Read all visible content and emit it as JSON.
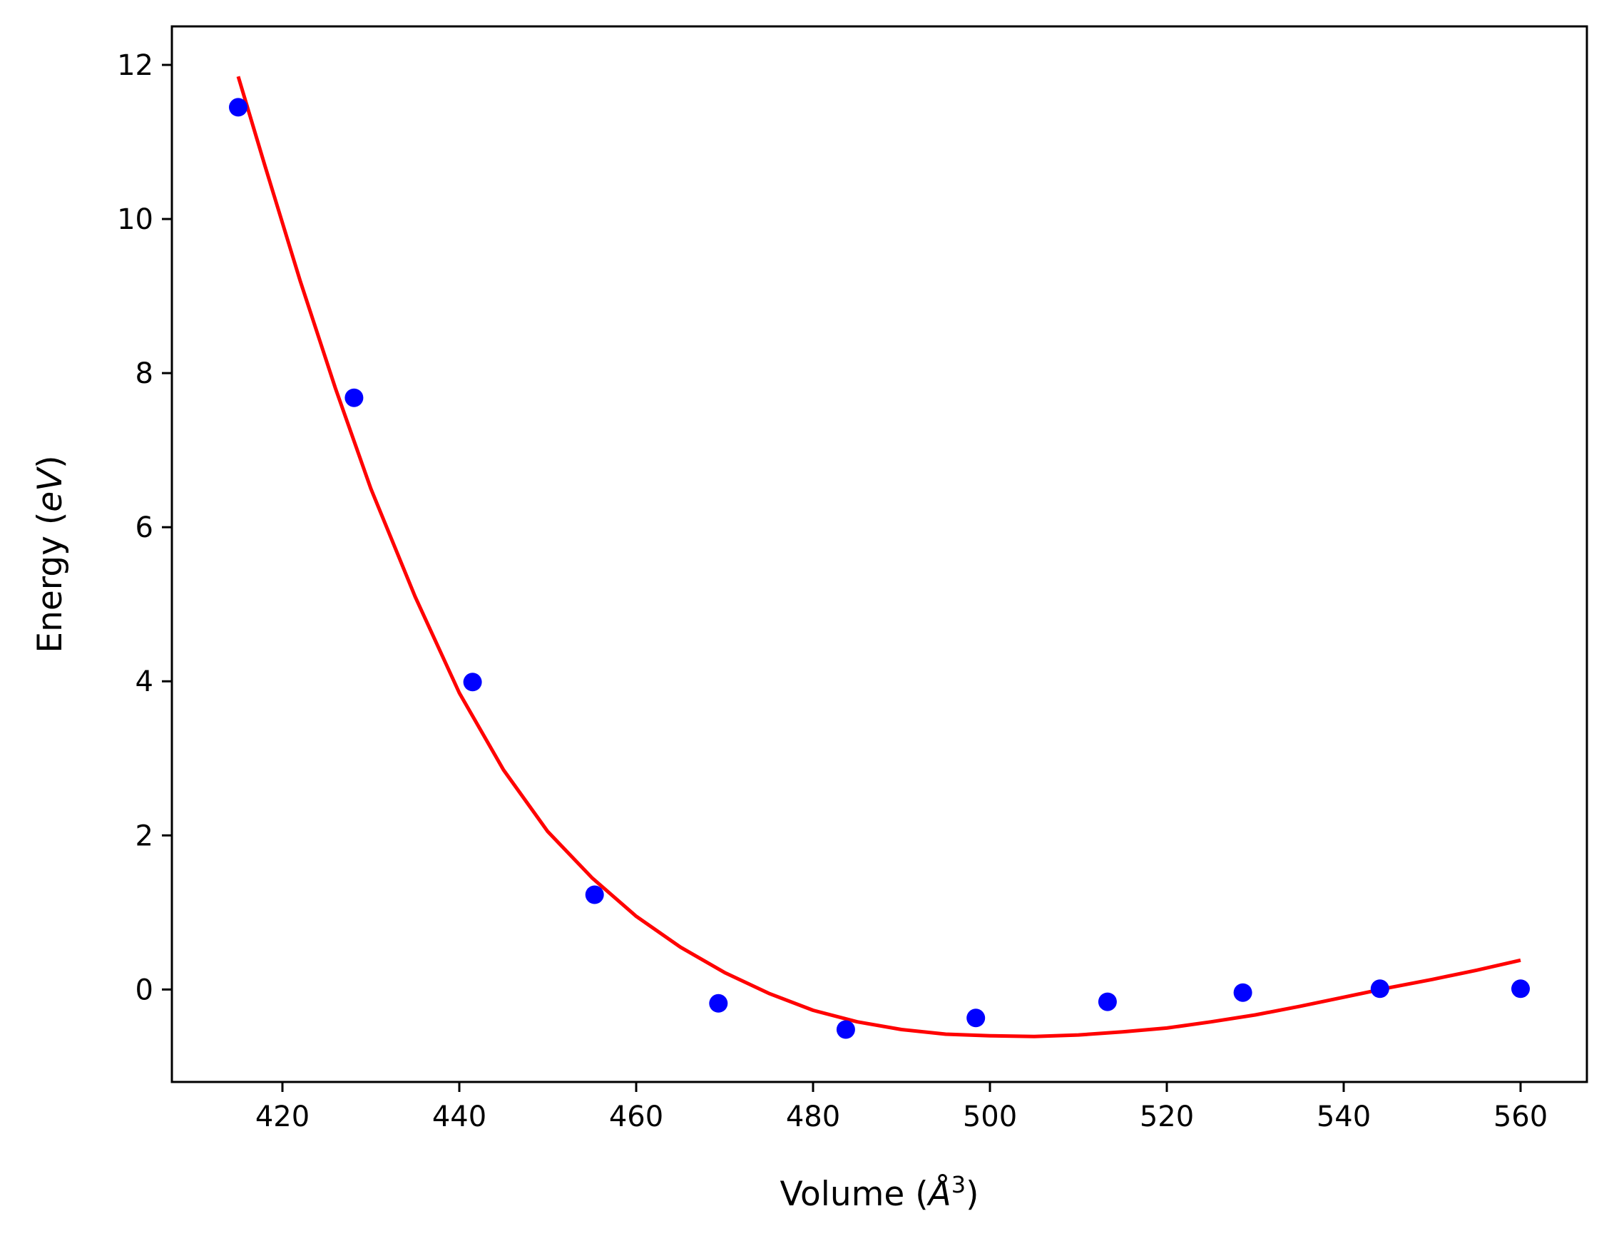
{
  "chart_data": {
    "type": "scatter",
    "xlabel_parts": {
      "prefix": "Volume (",
      "symbol": "Å",
      "power": "3",
      "suffix": ")"
    },
    "ylabel_parts": {
      "prefix": "Energy (",
      "symbol": "eV",
      "suffix": ")"
    },
    "xlim": [
      407.5,
      567.5
    ],
    "ylim": [
      -1.2,
      12.5
    ],
    "xticks": [
      420,
      440,
      460,
      480,
      500,
      520,
      540,
      560
    ],
    "yticks": [
      0,
      2,
      4,
      6,
      8,
      10,
      12
    ],
    "grid": false,
    "series": [
      {
        "kind": "scatter",
        "color": "#0000ff",
        "x": [
          415.0,
          428.1,
          441.5,
          455.3,
          469.3,
          483.7,
          498.4,
          513.3,
          528.6,
          544.1,
          560.0
        ],
        "y": [
          11.45,
          7.68,
          3.99,
          1.23,
          -0.18,
          -0.52,
          -0.37,
          -0.16,
          -0.04,
          0.01,
          0.01
        ]
      },
      {
        "kind": "line",
        "color": "#ff0000",
        "x": [
          415.0,
          418,
          422,
          426,
          430,
          435,
          440,
          445,
          450,
          455,
          460,
          465,
          470,
          475,
          480,
          485,
          490,
          495,
          500,
          505,
          510,
          515,
          520,
          525,
          530,
          535,
          540,
          545,
          550,
          555,
          560.0
        ],
        "y": [
          11.85,
          10.7,
          9.2,
          7.8,
          6.5,
          5.1,
          3.85,
          2.85,
          2.05,
          1.45,
          0.95,
          0.55,
          0.22,
          -0.05,
          -0.27,
          -0.42,
          -0.52,
          -0.58,
          -0.6,
          -0.61,
          -0.59,
          -0.55,
          -0.5,
          -0.42,
          -0.33,
          -0.22,
          -0.1,
          0.02,
          0.13,
          0.25,
          0.38
        ]
      }
    ]
  }
}
